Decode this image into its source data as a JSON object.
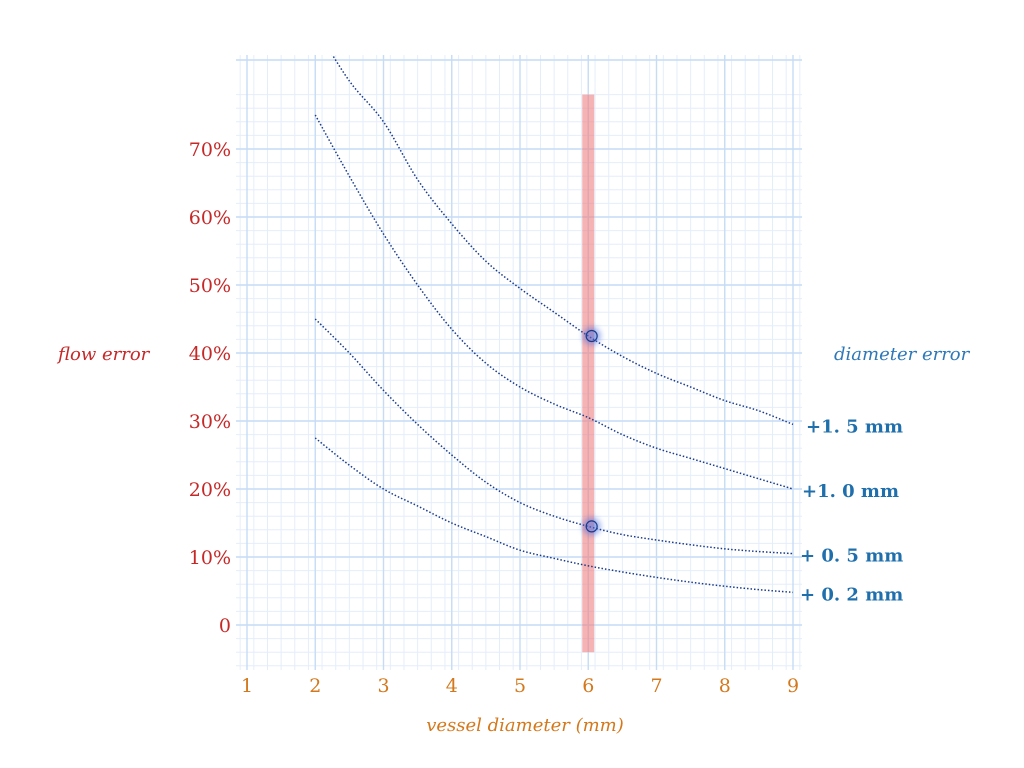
{
  "chart_data": {
    "type": "line",
    "xlabel": "vessel diameter (mm)",
    "ylabel": "flow error",
    "right_label": "diameter error",
    "x_ticks": [
      "1",
      "2",
      "3",
      "4",
      "5",
      "6",
      "7",
      "8",
      "9"
    ],
    "y_ticks": [
      {
        "value": 0,
        "label": "0"
      },
      {
        "value": 10,
        "label": "10%"
      },
      {
        "value": 20,
        "label": "20%"
      },
      {
        "value": 30,
        "label": "30%"
      },
      {
        "value": 40,
        "label": "40%"
      },
      {
        "value": 50,
        "label": "50%"
      },
      {
        "value": 60,
        "label": "60%"
      },
      {
        "value": 70,
        "label": "70%"
      }
    ],
    "xlim": [
      0.9,
      9.1
    ],
    "ylim": [
      -6,
      78
    ],
    "grid": true,
    "series": [
      {
        "name": "+1. 5 mm",
        "x": [
          2.0,
          2.5,
          3,
          3.5,
          4,
          4.5,
          5,
          5.5,
          6,
          6.5,
          7,
          7.5,
          8,
          8.5,
          9
        ],
        "y": [
          88,
          80,
          74,
          65.5,
          59,
          53.5,
          49.5,
          46,
          42.5,
          39.5,
          37,
          35,
          33,
          31.5,
          29.5
        ]
      },
      {
        "name": "+1. 0 mm",
        "x": [
          2,
          2.5,
          3,
          3.5,
          4,
          4.5,
          5,
          5.5,
          6,
          6.5,
          7,
          7.5,
          8,
          8.5,
          9
        ],
        "y": [
          75,
          66,
          57.5,
          50,
          43.5,
          38.5,
          35,
          32.5,
          30.5,
          28,
          26,
          24.5,
          23,
          21.5,
          20
        ]
      },
      {
        "name": "+ 0. 5 mm",
        "x": [
          2,
          2.5,
          3,
          3.5,
          4,
          4.5,
          5,
          5.5,
          6,
          6.5,
          7,
          7.5,
          8,
          8.5,
          9
        ],
        "y": [
          45,
          40,
          34.5,
          29.5,
          25,
          21,
          18,
          16,
          14.5,
          13.3,
          12.5,
          11.8,
          11.2,
          10.8,
          10.5
        ]
      },
      {
        "name": "+ 0. 2 mm",
        "x": [
          2,
          2.5,
          3,
          3.5,
          4,
          4.5,
          5,
          5.5,
          6,
          6.5,
          7,
          7.5,
          8,
          8.5,
          9
        ],
        "y": [
          27.5,
          23.5,
          20,
          17.5,
          15,
          13,
          11,
          9.8,
          8.7,
          7.8,
          7.0,
          6.3,
          5.7,
          5.2,
          4.8
        ]
      }
    ],
    "highlight_band": {
      "x": 6,
      "from_y": -4,
      "to_y": 78,
      "color": "#f08080"
    },
    "markers": [
      {
        "x": 6.05,
        "y": 42.5,
        "series": "+1. 5 mm"
      },
      {
        "x": 6.05,
        "y": 14.5,
        "series": "+ 0. 5 mm"
      }
    ],
    "colors": {
      "curve": "#1a3a8a",
      "grid_major": "#c6dcf5",
      "grid_minor": "#e4eefb",
      "y_text": "#c62828",
      "x_text": "#d4781c",
      "series_text": "#1f6fad",
      "marker_glow": "#4d6fe0"
    }
  }
}
